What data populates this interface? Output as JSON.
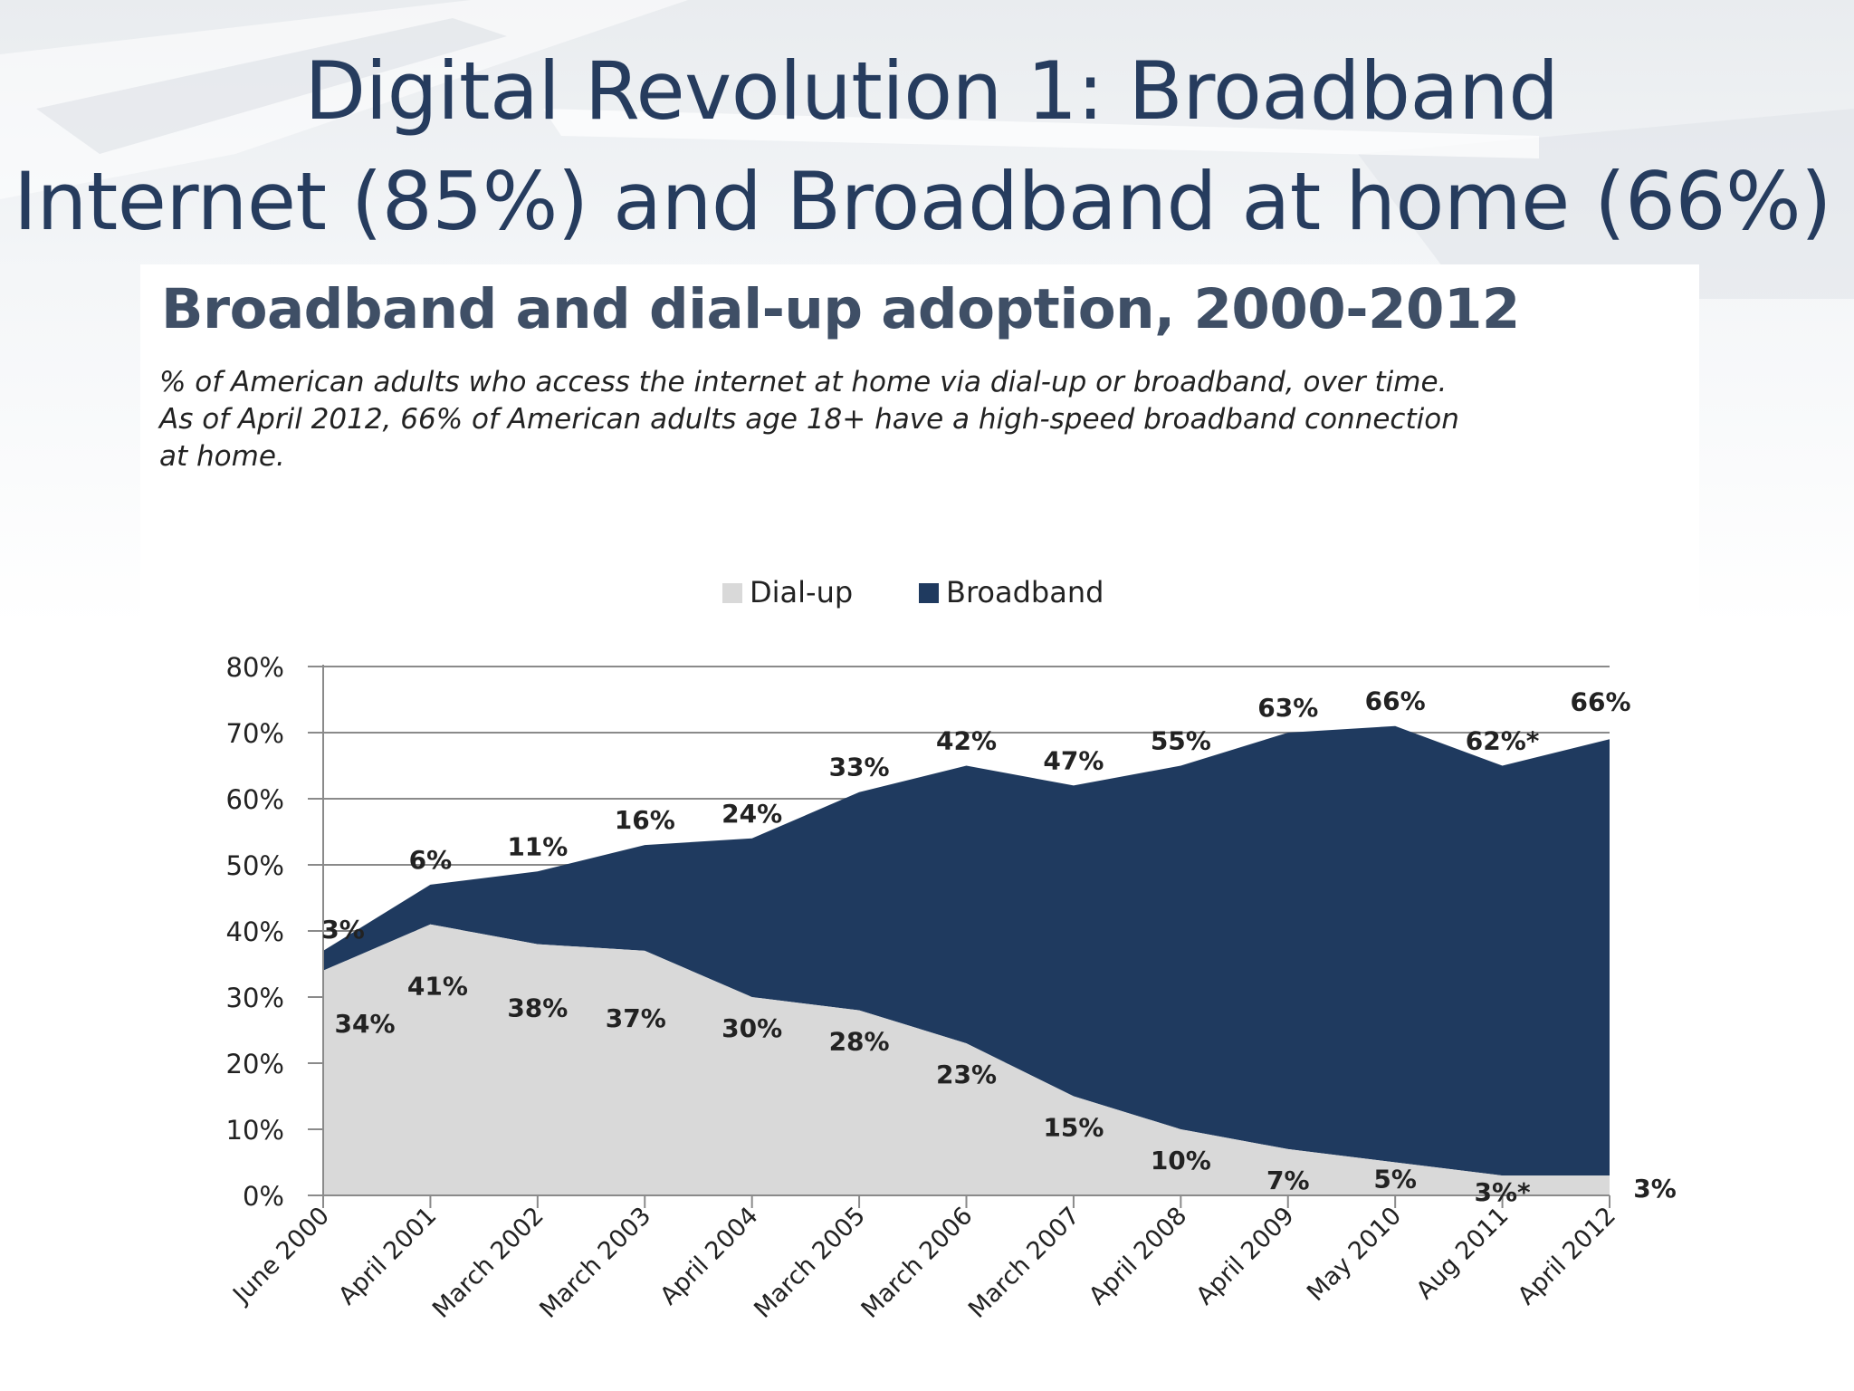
{
  "slide": {
    "title_line_1": "Digital Revolution 1: Broadband",
    "title_line_2": "Internet (85%) and Broadband at home (66%)"
  },
  "chart_data": {
    "type": "area",
    "stacked": true,
    "title": "Broadband and dial-up adoption, 2000-2012",
    "subtitle_lines": [
      "% of American adults who access the internet at home via dial-up or broadband, over time.",
      "As of April 2012, 66% of American adults age 18+ have a high-speed broadband connection",
      "at home."
    ],
    "categories": [
      "June 2000",
      "April 2001",
      "March 2002",
      "March 2003",
      "April 2004",
      "March 2005",
      "March 2006",
      "March 2007",
      "April 2008",
      "April 2009",
      "May 2010",
      "Aug 2011",
      "April 2012"
    ],
    "series": [
      {
        "name": "Dial-up",
        "color": "#d9d9d9",
        "values": [
          34,
          41,
          38,
          37,
          30,
          28,
          23,
          15,
          10,
          7,
          5,
          3,
          3
        ],
        "labels": [
          "34%",
          "41%",
          "38%",
          "37%",
          "30%",
          "28%",
          "23%",
          "15%",
          "10%",
          "7%",
          "5%",
          "3%*",
          "3%"
        ]
      },
      {
        "name": "Broadband",
        "color": "#1f3a5f",
        "values": [
          3,
          6,
          11,
          16,
          24,
          33,
          42,
          47,
          55,
          63,
          66,
          62,
          66
        ],
        "labels": [
          "3%",
          "6%",
          "11%",
          "16%",
          "24%",
          "33%",
          "42%",
          "47%",
          "55%",
          "63%",
          "66%",
          "62%*",
          "66%"
        ]
      }
    ],
    "ylim": [
      0,
      80
    ],
    "yticks": [
      "0%",
      "10%",
      "20%",
      "30%",
      "40%",
      "50%",
      "60%",
      "70%",
      "80%"
    ],
    "grid": true,
    "legend_position": "top-center"
  }
}
